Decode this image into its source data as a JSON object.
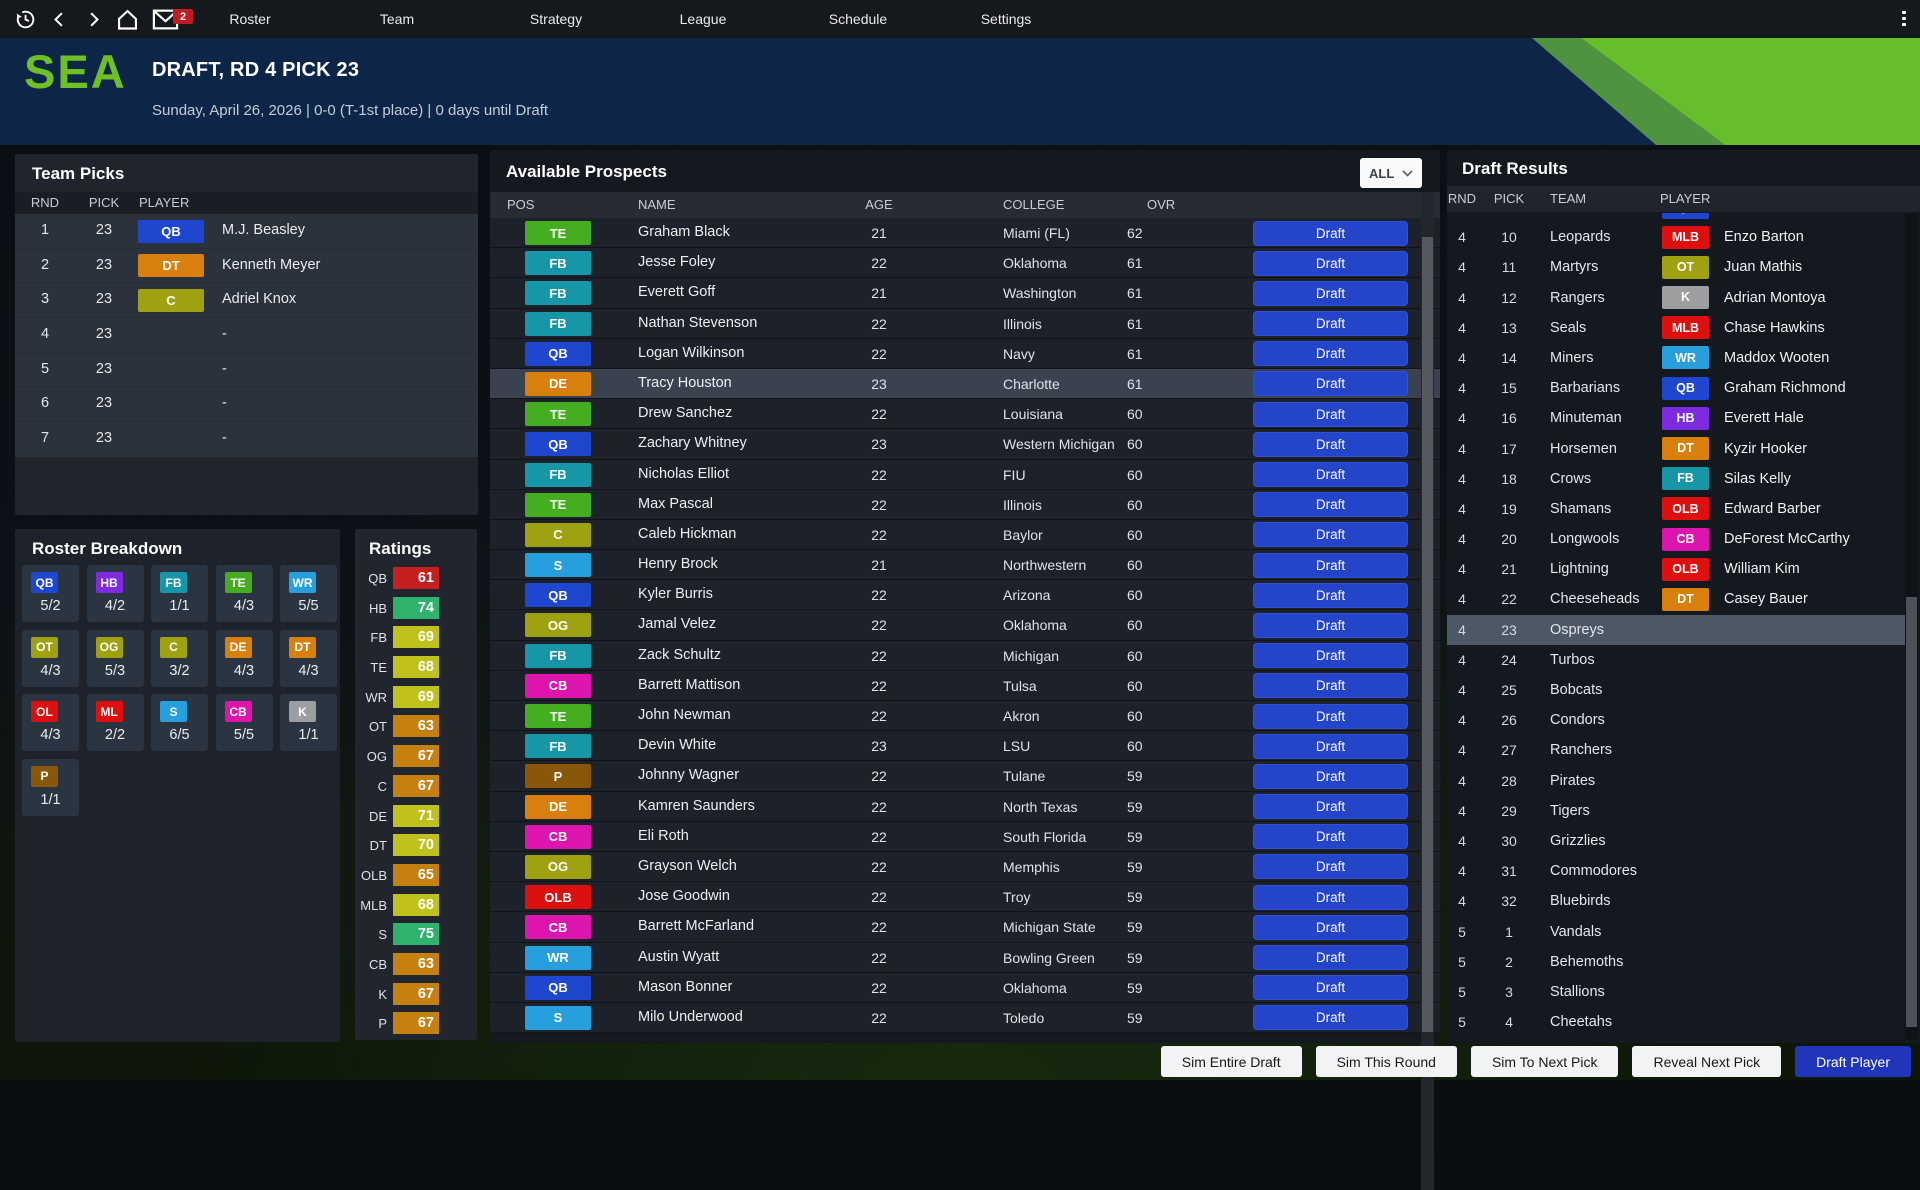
{
  "nav": {
    "items": [
      "Roster",
      "Team",
      "Strategy",
      "League",
      "Schedule",
      "Settings"
    ],
    "mail_badge": "2",
    "icons": {
      "history": "history-icon",
      "back": "back-icon",
      "forward": "forward-icon",
      "home": "home-icon",
      "mail": "mail-icon",
      "menu": "kebab-menu-icon",
      "filter_chevron": "chevron-down-icon"
    }
  },
  "header": {
    "team_abbr": "SEA",
    "title": "DRAFT, RD 4 PICK 23",
    "subtitle": "Sunday, April 26, 2026 | 0-0 (T-1st place) | 0 days until Draft"
  },
  "team_picks": {
    "title": "Team Picks",
    "columns": [
      "RND",
      "PICK",
      "PLAYER"
    ],
    "rows": [
      {
        "rnd": "1",
        "pick": "23",
        "pos": "QB",
        "player": "M.J. Beasley"
      },
      {
        "rnd": "2",
        "pick": "23",
        "pos": "DT",
        "player": "Kenneth Meyer"
      },
      {
        "rnd": "3",
        "pick": "23",
        "pos": "C",
        "player": "Adriel Knox"
      },
      {
        "rnd": "4",
        "pick": "23",
        "pos": null,
        "player": "-"
      },
      {
        "rnd": "5",
        "pick": "23",
        "pos": null,
        "player": "-"
      },
      {
        "rnd": "6",
        "pick": "23",
        "pos": null,
        "player": "-"
      },
      {
        "rnd": "7",
        "pick": "23",
        "pos": null,
        "player": "-"
      }
    ]
  },
  "roster_breakdown": {
    "title": "Roster Breakdown",
    "cells": [
      {
        "pos": "QB",
        "count": "5/2"
      },
      {
        "pos": "HB",
        "count": "4/2"
      },
      {
        "pos": "FB",
        "count": "1/1"
      },
      {
        "pos": "TE",
        "count": "4/3"
      },
      {
        "pos": "WR",
        "count": "5/5"
      },
      {
        "pos": "OT",
        "count": "4/3"
      },
      {
        "pos": "OG",
        "count": "5/3"
      },
      {
        "pos": "C",
        "count": "3/2"
      },
      {
        "pos": "DE",
        "count": "4/3"
      },
      {
        "pos": "DT",
        "count": "4/3"
      },
      {
        "pos": "OL",
        "count": "4/3"
      },
      {
        "pos": "ML",
        "count": "2/2"
      },
      {
        "pos": "S",
        "count": "6/5"
      },
      {
        "pos": "CB",
        "count": "5/5"
      },
      {
        "pos": "K",
        "count": "1/1"
      },
      {
        "pos": "P",
        "count": "1/1"
      }
    ]
  },
  "ratings": {
    "title": "Ratings",
    "rows": [
      {
        "pos": "QB",
        "value": 61
      },
      {
        "pos": "HB",
        "value": 74
      },
      {
        "pos": "FB",
        "value": 69
      },
      {
        "pos": "TE",
        "value": 68
      },
      {
        "pos": "WR",
        "value": 69
      },
      {
        "pos": "OT",
        "value": 63
      },
      {
        "pos": "OG",
        "value": 67
      },
      {
        "pos": "C",
        "value": 67
      },
      {
        "pos": "DE",
        "value": 71
      },
      {
        "pos": "DT",
        "value": 70
      },
      {
        "pos": "OLB",
        "value": 65
      },
      {
        "pos": "MLB",
        "value": 68
      },
      {
        "pos": "S",
        "value": 75
      },
      {
        "pos": "CB",
        "value": 63
      },
      {
        "pos": "K",
        "value": 67
      },
      {
        "pos": "P",
        "value": 67
      }
    ]
  },
  "prospects": {
    "title": "Available Prospects",
    "filter": "ALL",
    "columns": [
      "POS",
      "NAME",
      "AGE",
      "COLLEGE",
      "OVR"
    ],
    "draft_label": "Draft",
    "rows": [
      {
        "pos": "TE",
        "name": "Graham Black",
        "age": "21",
        "college": "Miami (FL)",
        "ovr": "62"
      },
      {
        "pos": "FB",
        "name": "Jesse Foley",
        "age": "22",
        "college": "Oklahoma",
        "ovr": "61"
      },
      {
        "pos": "FB",
        "name": "Everett Goff",
        "age": "21",
        "college": "Washington",
        "ovr": "61"
      },
      {
        "pos": "FB",
        "name": "Nathan Stevenson",
        "age": "22",
        "college": "Illinois",
        "ovr": "61"
      },
      {
        "pos": "QB",
        "name": "Logan Wilkinson",
        "age": "22",
        "college": "Navy",
        "ovr": "61"
      },
      {
        "pos": "DE",
        "name": "Tracy Houston",
        "age": "23",
        "college": "Charlotte",
        "ovr": "61",
        "highlight": true
      },
      {
        "pos": "TE",
        "name": "Drew Sanchez",
        "age": "22",
        "college": "Louisiana",
        "ovr": "60"
      },
      {
        "pos": "QB",
        "name": "Zachary Whitney",
        "age": "23",
        "college": "Western Michigan",
        "ovr": "60"
      },
      {
        "pos": "FB",
        "name": "Nicholas Elliot",
        "age": "22",
        "college": "FIU",
        "ovr": "60"
      },
      {
        "pos": "TE",
        "name": "Max Pascal",
        "age": "22",
        "college": "Illinois",
        "ovr": "60"
      },
      {
        "pos": "C",
        "name": "Caleb Hickman",
        "age": "22",
        "college": "Baylor",
        "ovr": "60"
      },
      {
        "pos": "S",
        "name": "Henry Brock",
        "age": "21",
        "college": "Northwestern",
        "ovr": "60"
      },
      {
        "pos": "QB",
        "name": "Kyler Burris",
        "age": "22",
        "college": "Arizona",
        "ovr": "60"
      },
      {
        "pos": "OG",
        "name": "Jamal Velez",
        "age": "22",
        "college": "Oklahoma",
        "ovr": "60"
      },
      {
        "pos": "FB",
        "name": "Zack Schultz",
        "age": "22",
        "college": "Michigan",
        "ovr": "60"
      },
      {
        "pos": "CB",
        "name": "Barrett Mattison",
        "age": "22",
        "college": "Tulsa",
        "ovr": "60"
      },
      {
        "pos": "TE",
        "name": "John Newman",
        "age": "22",
        "college": "Akron",
        "ovr": "60"
      },
      {
        "pos": "FB",
        "name": "Devin White",
        "age": "23",
        "college": "LSU",
        "ovr": "60"
      },
      {
        "pos": "P",
        "name": "Johnny Wagner",
        "age": "22",
        "college": "Tulane",
        "ovr": "59"
      },
      {
        "pos": "DE",
        "name": "Kamren Saunders",
        "age": "22",
        "college": "North Texas",
        "ovr": "59"
      },
      {
        "pos": "CB",
        "name": "Eli Roth",
        "age": "22",
        "college": "South Florida",
        "ovr": "59"
      },
      {
        "pos": "OG",
        "name": "Grayson Welch",
        "age": "22",
        "college": "Memphis",
        "ovr": "59"
      },
      {
        "pos": "OLB",
        "name": "Jose Goodwin",
        "age": "22",
        "college": "Troy",
        "ovr": "59"
      },
      {
        "pos": "CB",
        "name": "Barrett McFarland",
        "age": "22",
        "college": "Michigan State",
        "ovr": "59"
      },
      {
        "pos": "WR",
        "name": "Austin Wyatt",
        "age": "22",
        "college": "Bowling Green",
        "ovr": "59"
      },
      {
        "pos": "QB",
        "name": "Mason Bonner",
        "age": "22",
        "college": "Oklahoma",
        "ovr": "59"
      },
      {
        "pos": "S",
        "name": "Milo Underwood",
        "age": "22",
        "college": "Toledo",
        "ovr": "59"
      }
    ]
  },
  "draft_results": {
    "title": "Draft Results",
    "columns": [
      "RND",
      "PICK",
      "TEAM",
      "PLAYER"
    ],
    "rows": [
      {
        "rnd": "",
        "pick": "",
        "team": "",
        "pos": "QB",
        "player": "",
        "partial": true
      },
      {
        "rnd": "4",
        "pick": "10",
        "team": "Leopards",
        "pos": "MLB",
        "player": "Enzo Barton"
      },
      {
        "rnd": "4",
        "pick": "11",
        "team": "Martyrs",
        "pos": "OT",
        "player": "Juan Mathis"
      },
      {
        "rnd": "4",
        "pick": "12",
        "team": "Rangers",
        "pos": "K",
        "player": "Adrian Montoya"
      },
      {
        "rnd": "4",
        "pick": "13",
        "team": "Seals",
        "pos": "MLB",
        "player": "Chase Hawkins"
      },
      {
        "rnd": "4",
        "pick": "14",
        "team": "Miners",
        "pos": "WR",
        "player": "Maddox Wooten"
      },
      {
        "rnd": "4",
        "pick": "15",
        "team": "Barbarians",
        "pos": "QB",
        "player": "Graham Richmond"
      },
      {
        "rnd": "4",
        "pick": "16",
        "team": "Minuteman",
        "pos": "HB",
        "player": "Everett Hale"
      },
      {
        "rnd": "4",
        "pick": "17",
        "team": "Horsemen",
        "pos": "DT",
        "player": "Kyzir Hooker"
      },
      {
        "rnd": "4",
        "pick": "18",
        "team": "Crows",
        "pos": "FB",
        "player": "Silas Kelly"
      },
      {
        "rnd": "4",
        "pick": "19",
        "team": "Shamans",
        "pos": "OLB",
        "player": "Edward Barber"
      },
      {
        "rnd": "4",
        "pick": "20",
        "team": "Longwools",
        "pos": "CB",
        "player": "DeForest McCarthy"
      },
      {
        "rnd": "4",
        "pick": "21",
        "team": "Lightning",
        "pos": "OLB",
        "player": "William Kim"
      },
      {
        "rnd": "4",
        "pick": "22",
        "team": "Cheeseheads",
        "pos": "DT",
        "player": "Casey Bauer"
      },
      {
        "rnd": "4",
        "pick": "23",
        "team": "Ospreys",
        "pos": null,
        "player": "",
        "highlight": true
      },
      {
        "rnd": "4",
        "pick": "24",
        "team": "Turbos",
        "pos": null,
        "player": ""
      },
      {
        "rnd": "4",
        "pick": "25",
        "team": "Bobcats",
        "pos": null,
        "player": ""
      },
      {
        "rnd": "4",
        "pick": "26",
        "team": "Condors",
        "pos": null,
        "player": ""
      },
      {
        "rnd": "4",
        "pick": "27",
        "team": "Ranchers",
        "pos": null,
        "player": ""
      },
      {
        "rnd": "4",
        "pick": "28",
        "team": "Pirates",
        "pos": null,
        "player": ""
      },
      {
        "rnd": "4",
        "pick": "29",
        "team": "Tigers",
        "pos": null,
        "player": ""
      },
      {
        "rnd": "4",
        "pick": "30",
        "team": "Grizzlies",
        "pos": null,
        "player": ""
      },
      {
        "rnd": "4",
        "pick": "31",
        "team": "Commodores",
        "pos": null,
        "player": ""
      },
      {
        "rnd": "4",
        "pick": "32",
        "team": "Bluebirds",
        "pos": null,
        "player": ""
      },
      {
        "rnd": "5",
        "pick": "1",
        "team": "Vandals",
        "pos": null,
        "player": ""
      },
      {
        "rnd": "5",
        "pick": "2",
        "team": "Behemoths",
        "pos": null,
        "player": ""
      },
      {
        "rnd": "5",
        "pick": "3",
        "team": "Stallions",
        "pos": null,
        "player": ""
      },
      {
        "rnd": "5",
        "pick": "4",
        "team": "Cheetahs",
        "pos": null,
        "player": ""
      }
    ]
  },
  "footer": {
    "buttons": [
      {
        "label": "Sim Entire Draft",
        "primary": false
      },
      {
        "label": "Sim This Round",
        "primary": false
      },
      {
        "label": "Sim To Next Pick",
        "primary": false
      },
      {
        "label": "Reveal Next Pick",
        "primary": false
      },
      {
        "label": "Draft Player",
        "primary": true
      }
    ]
  },
  "pos_colors": {
    "QB": "#1e46cf",
    "HB": "#7d2ae0",
    "FB": "#1796a8",
    "TE": "#44ad20",
    "WR": "#279fdd",
    "OT": "#9ea211",
    "OG": "#9ea211",
    "C": "#9ea211",
    "OL": "#dd0f0f",
    "DE": "#d97f0c",
    "DT": "#d97f0c",
    "ML": "#dd0f0f",
    "OLB": "#dd0f0f",
    "MLB": "#dd0f0f",
    "S": "#279fdd",
    "CB": "#dd14ad",
    "K": "#9c9ea0",
    "P": "#8a560a"
  },
  "rating_colors": {
    "red": "#c52020",
    "orange": "#c5810f",
    "yellow": "#bfc11d",
    "green": "#2eb26d"
  },
  "colors": {
    "accent_green": "#68bd2a",
    "accent_green_dark": "#4f9340",
    "logo_green": "#6fc024",
    "header_navy": "#0d2647",
    "draft_button_blue": "#2444c9",
    "primary_button_blue": "#2135bb",
    "mail_badge_red": "#c11b24"
  }
}
